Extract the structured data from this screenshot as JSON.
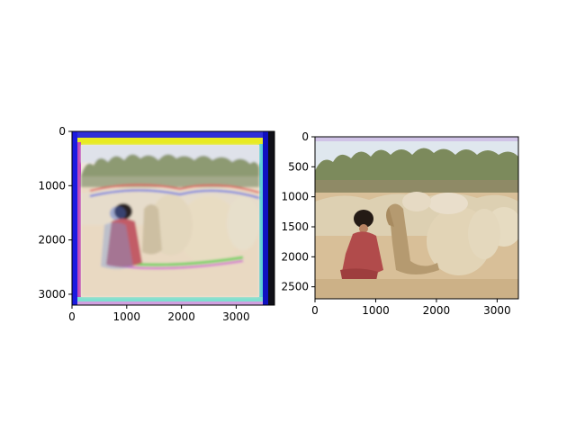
{
  "chart_data": [
    {
      "type": "image",
      "xlim": [
        0,
        3700
      ],
      "ylim": [
        3200,
        0
      ],
      "x_ticks": [
        0,
        1000,
        2000,
        3000
      ],
      "y_ticks": [
        0,
        1000,
        2000,
        3000
      ],
      "x_tick_labels": [
        "0",
        "1000",
        "2000",
        "3000"
      ],
      "y_tick_labels": [
        "0",
        "1000",
        "2000",
        "3000"
      ],
      "grid": false,
      "content": "unaligned color channels: blurred scene with red/green/blue fringes, blue and yellow bands at the borders"
    },
    {
      "type": "image",
      "xlim": [
        0,
        3350
      ],
      "ylim": [
        2700,
        0
      ],
      "x_ticks": [
        0,
        1000,
        2000,
        3000
      ],
      "y_ticks": [
        0,
        500,
        1000,
        1500,
        2000,
        2500
      ],
      "x_tick_labels": [
        "0",
        "1000",
        "2000",
        "3000"
      ],
      "y_tick_labels": [
        "0",
        "500",
        "1000",
        "1500",
        "2000",
        "2500"
      ],
      "grid": false,
      "content": "aligned color photograph: man in red robe and tall black hat seated beside a camel and large sacks, trees behind"
    }
  ],
  "colors": {
    "sky": "#dfe7ee",
    "trees": "#7c8a5c",
    "ground": "#d8bf98",
    "sacks": "#e2d4b6",
    "robe": "#b14b4b",
    "hat": "#241a15",
    "border_blue": "#1b1be0",
    "border_yellow": "#e8ea22"
  }
}
